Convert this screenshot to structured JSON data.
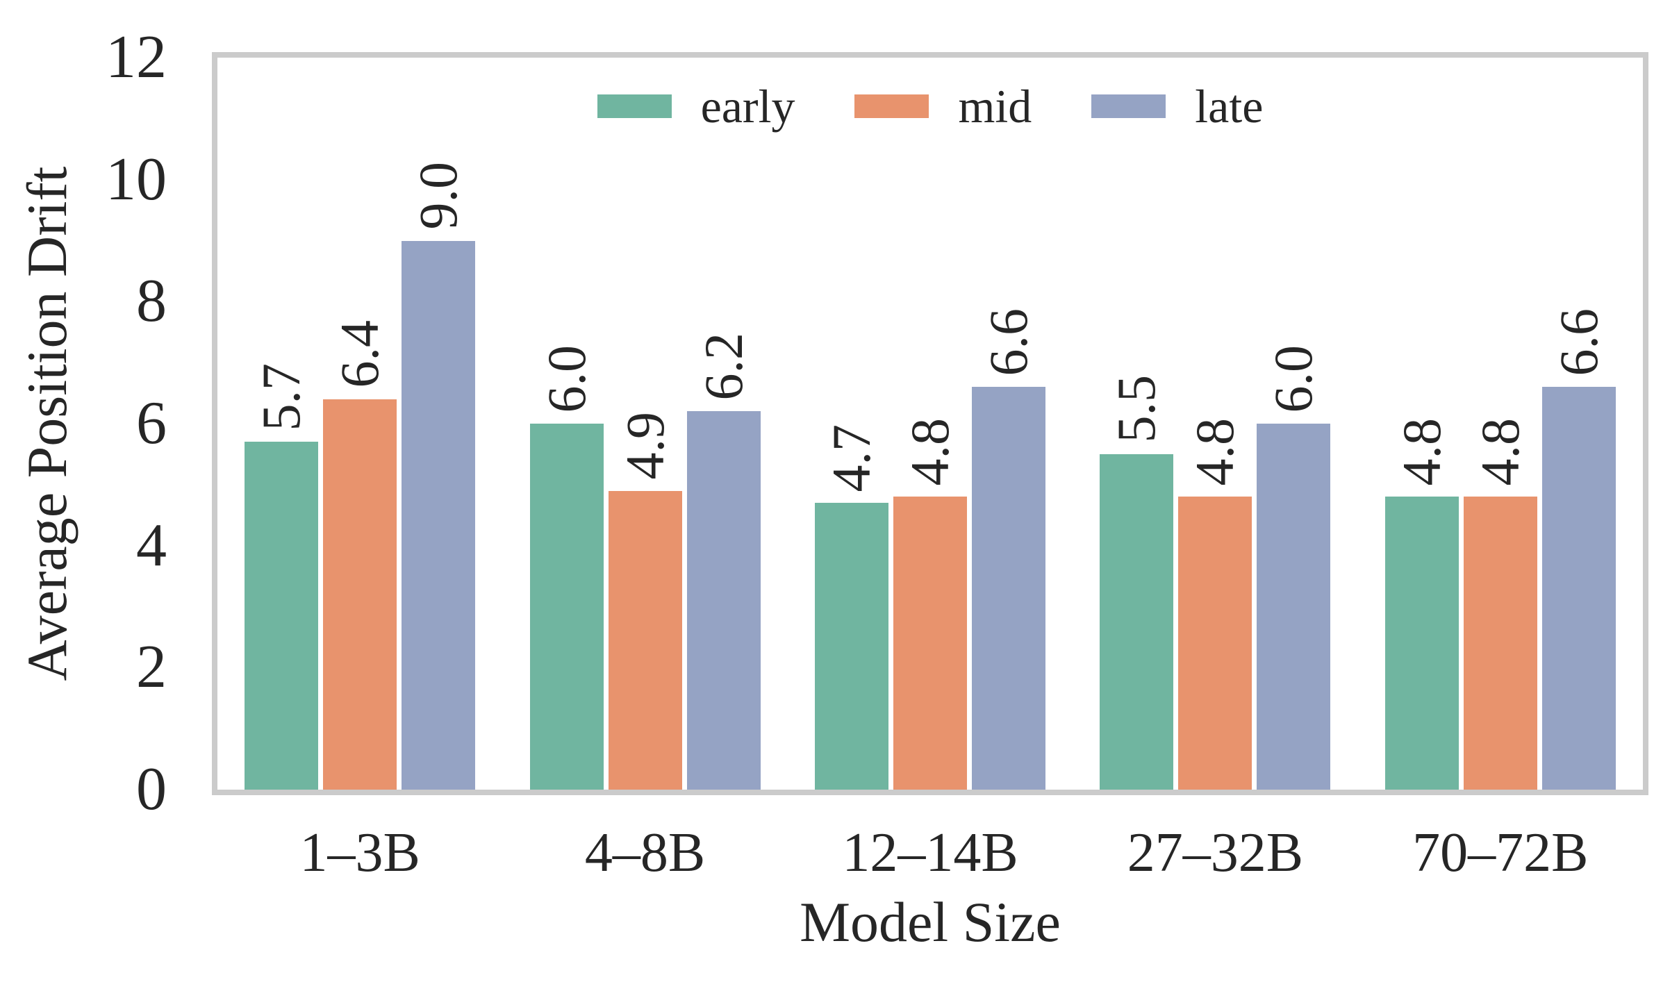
{
  "chart_data": {
    "type": "bar",
    "title": "",
    "xlabel": "Model Size",
    "ylabel": "Average Position Drift",
    "categories": [
      "1–3B",
      "4–8B",
      "12–14B",
      "27–32B",
      "70–72B"
    ],
    "series": [
      {
        "name": "early",
        "color": "#70b5a0",
        "values": [
          5.7,
          6.0,
          4.7,
          5.5,
          4.8
        ]
      },
      {
        "name": "mid",
        "color": "#e8936d",
        "values": [
          6.4,
          4.9,
          4.8,
          4.8,
          4.8
        ]
      },
      {
        "name": "late",
        "color": "#95a3c4",
        "values": [
          9.0,
          6.2,
          6.6,
          6.0,
          6.6
        ]
      }
    ],
    "ylim": [
      0,
      12
    ],
    "yticks": [
      0,
      2,
      4,
      6,
      8,
      10,
      12
    ],
    "value_label_decimals": 1,
    "value_label_rotation": 90,
    "legend_position": "top-center",
    "grid": false,
    "spine_color": "#cbcbcb",
    "text_color": "#262626",
    "background_color": "#ffffff"
  }
}
